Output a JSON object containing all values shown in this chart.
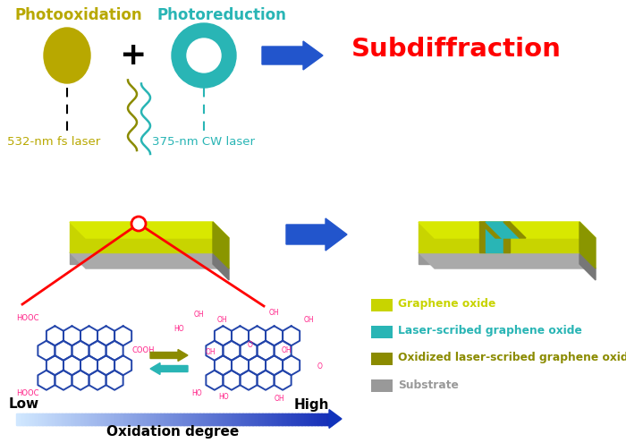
{
  "bg_color": "#ffffff",
  "title_photoox": "Photooxidation",
  "title_photored": "Photoreduction",
  "title_subdiff": "Subdiffraction",
  "laser1_label": "532-nm fs laser",
  "laser2_label": "375-nm CW laser",
  "color_photoox": "#b8a800",
  "color_photored": "#29b5b5",
  "color_subdiff": "#ff0000",
  "color_go_bright": "#c8d400",
  "color_go_top": "#d8e800",
  "color_go_side": "#8a9600",
  "color_laser_scribed": "#29b5b5",
  "color_oxidized": "#8b8b00",
  "color_substrate_front": "#999999",
  "color_substrate_top": "#aaaaaa",
  "color_substrate_side": "#777777",
  "color_arrow_blue": "#2255cc",
  "color_arrow_olive": "#8b8b00",
  "color_arrow_teal": "#29b5b5",
  "color_red_lines": "#ff0000",
  "color_hex": "#2244aa",
  "color_label_red": "#ff2288",
  "legend_items": [
    {
      "label": "Graphene oxide",
      "color": "#c8d400"
    },
    {
      "label": "Laser-scribed graphene oxide",
      "color": "#29b5b5"
    },
    {
      "label": "Oxidized laser-scribed graphene oxide",
      "color": "#8b8b00"
    },
    {
      "label": "Substrate",
      "color": "#999999"
    }
  ],
  "low_text": "Low",
  "high_text": "High",
  "oxdeg_text": "Oxidation degree"
}
